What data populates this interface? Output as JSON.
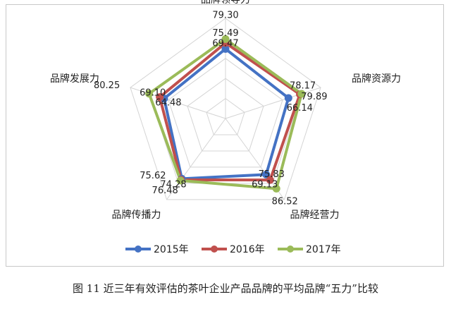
{
  "chart_data": {
    "type": "radar",
    "axes": [
      "品牌领导力",
      "品牌资源力",
      "品牌经营力",
      "品牌传播力",
      "品牌发展力"
    ],
    "range": [
      0,
      100
    ],
    "grid": true,
    "legend_position": "bottom",
    "series": [
      {
        "name": "2015年",
        "color": "#4472c4",
        "values": [
          69.47,
          66.14,
          69.13,
          74.28,
          64.48
        ]
      },
      {
        "name": "2016年",
        "color": "#c0504d",
        "values": [
          75.49,
          78.17,
          75.83,
          75.62,
          69.1
        ]
      },
      {
        "name": "2017年",
        "color": "#9bbb59",
        "values": [
          79.3,
          79.89,
          86.52,
          76.48,
          80.25
        ]
      }
    ]
  },
  "caption": "图 11  近三年有效评估的茶叶企业产品品牌的平均品牌“五力”比较"
}
